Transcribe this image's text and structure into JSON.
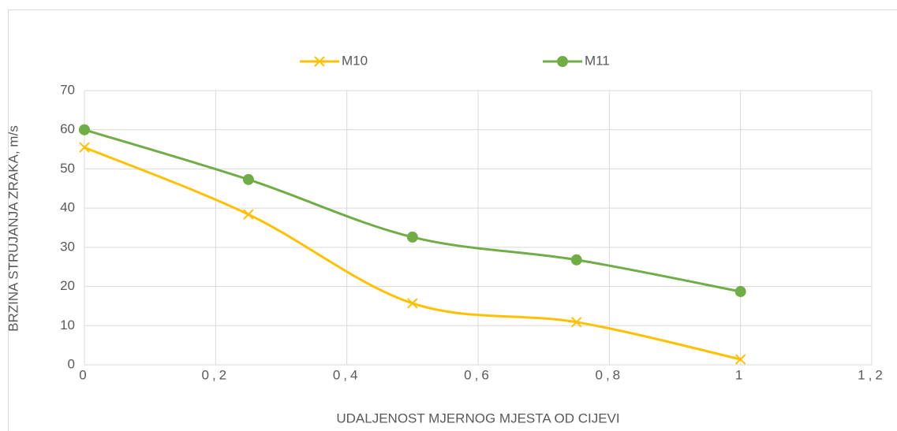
{
  "chart_data": {
    "type": "scatter",
    "x_label": "UDALJENOST MJERNOG MJESTA OD CIJEVI",
    "y_label": "BRZINA STRUJANJA ZRAKA, m/s",
    "x": [
      0,
      0.25,
      0.5,
      0.75,
      1
    ],
    "series": [
      {
        "name": "M10",
        "color": "#ffc000",
        "marker": "x",
        "values": [
          55.5,
          38.4,
          15.7,
          10.9,
          1.4
        ]
      },
      {
        "name": "M11",
        "color": "#70ad47",
        "marker": "circle",
        "values": [
          60,
          47.3,
          32.6,
          26.8,
          18.7
        ]
      }
    ],
    "xlim": [
      0,
      1.2
    ],
    "xticks": [
      0,
      {
        "value": 0.2,
        "label": "0,2"
      },
      {
        "value": 0.4,
        "label": "0,4"
      },
      {
        "value": 0.6,
        "label": "0,6"
      },
      {
        "value": 0.8,
        "label": "0,8"
      },
      1,
      {
        "value": 1.2,
        "label": "1,2"
      }
    ],
    "ylim": [
      0,
      70
    ],
    "yticks": [
      0,
      10,
      20,
      30,
      40,
      50,
      60,
      70
    ],
    "grid": true,
    "legend": "top",
    "smooth": true
  }
}
